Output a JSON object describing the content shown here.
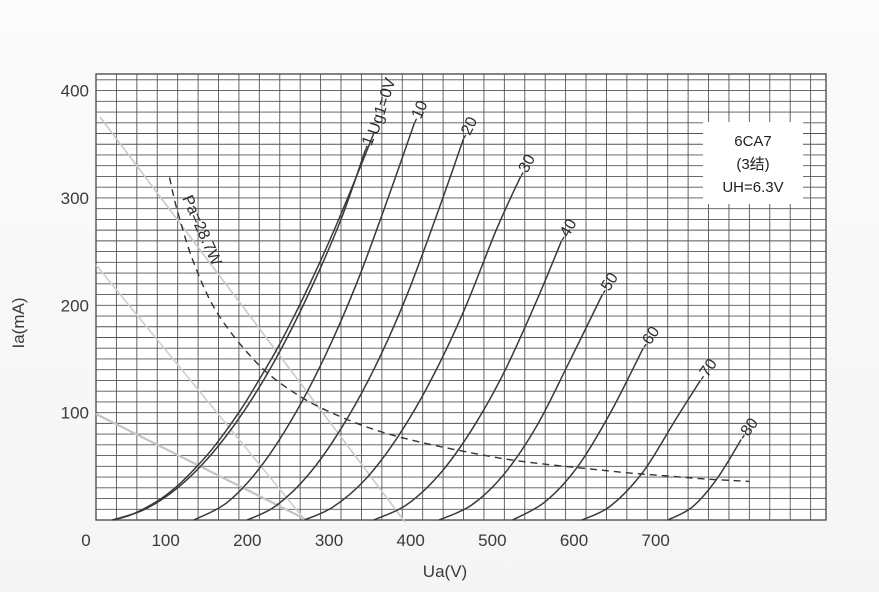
{
  "chart_data": {
    "type": "line",
    "title": "6CA7",
    "subtitle": "(3结)",
    "heater": "UH=6.3V",
    "xlabel": "Ua(V)",
    "ylabel": "Ia(mA)",
    "xlim": [
      0,
      890
    ],
    "ylim": [
      0,
      410
    ],
    "grid": true,
    "x_ticks": [
      "0",
      "100",
      "200",
      "300",
      "400",
      "500",
      "600",
      "700"
    ],
    "y_ticks": [
      "100",
      "200",
      "300",
      "400"
    ],
    "series": [
      {
        "name": "Ug1=0V",
        "x": [
          20,
          40,
          60,
          80,
          100,
          120,
          140,
          160,
          180,
          200,
          220,
          240,
          260,
          280,
          300,
          320,
          340
        ],
        "y": [
          0,
          4,
          11,
          20,
          32,
          47,
          64,
          84,
          106,
          131,
          157,
          186,
          217,
          250,
          285,
          322,
          360
        ]
      },
      {
        "name": "-1",
        "x": [
          20,
          60,
          100,
          140,
          180,
          220,
          260,
          300,
          330
        ],
        "y": [
          0,
          10,
          30,
          60,
          100,
          150,
          210,
          280,
          345
        ]
      },
      {
        "name": "-10",
        "x": [
          120,
          160,
          200,
          240,
          280,
          320,
          360,
          390
        ],
        "y": [
          0,
          16,
          48,
          94,
          152,
          222,
          305,
          370
        ]
      },
      {
        "name": "-20",
        "x": [
          185,
          220,
          260,
          300,
          340,
          380,
          420,
          450
        ],
        "y": [
          0,
          13,
          42,
          85,
          140,
          208,
          290,
          355
        ]
      },
      {
        "name": "-30",
        "x": [
          255,
          290,
          330,
          370,
          410,
          450,
          490,
          520
        ],
        "y": [
          0,
          12,
          38,
          78,
          130,
          194,
          270,
          320
        ]
      },
      {
        "name": "-40",
        "x": [
          340,
          380,
          420,
          460,
          500,
          540,
          570
        ],
        "y": [
          0,
          14,
          42,
          84,
          138,
          205,
          260
        ]
      },
      {
        "name": "-50",
        "x": [
          420,
          460,
          500,
          540,
          580,
          620
        ],
        "y": [
          0,
          14,
          43,
          88,
          148,
          210
        ]
      },
      {
        "name": "-60",
        "x": [
          510,
          550,
          590,
          630,
          670
        ],
        "y": [
          0,
          17,
          50,
          100,
          160
        ]
      },
      {
        "name": "-70",
        "x": [
          595,
          630,
          670,
          710,
          740
        ],
        "y": [
          0,
          13,
          45,
          94,
          130
        ]
      },
      {
        "name": "-80",
        "x": [
          700,
          730,
          760,
          790
        ],
        "y": [
          0,
          12,
          38,
          75
        ]
      },
      {
        "name": "Pa=28.7W",
        "style": "dashed",
        "x": [
          90,
          100,
          120,
          150,
          200,
          250,
          300,
          350,
          400,
          450,
          500,
          550,
          600,
          650,
          700,
          750,
          800
        ],
        "y": [
          319,
          287,
          239,
          191,
          144,
          115,
          96,
          82,
          72,
          64,
          57,
          52,
          48,
          44,
          41,
          38,
          36
        ]
      }
    ]
  },
  "curve_label_text": [
    "Ug1=0V",
    "-1",
    "-10",
    "-20",
    "-30",
    "-40",
    "-50",
    "-60",
    "-70",
    "-80"
  ],
  "pa_label": "Pa=28.7W"
}
